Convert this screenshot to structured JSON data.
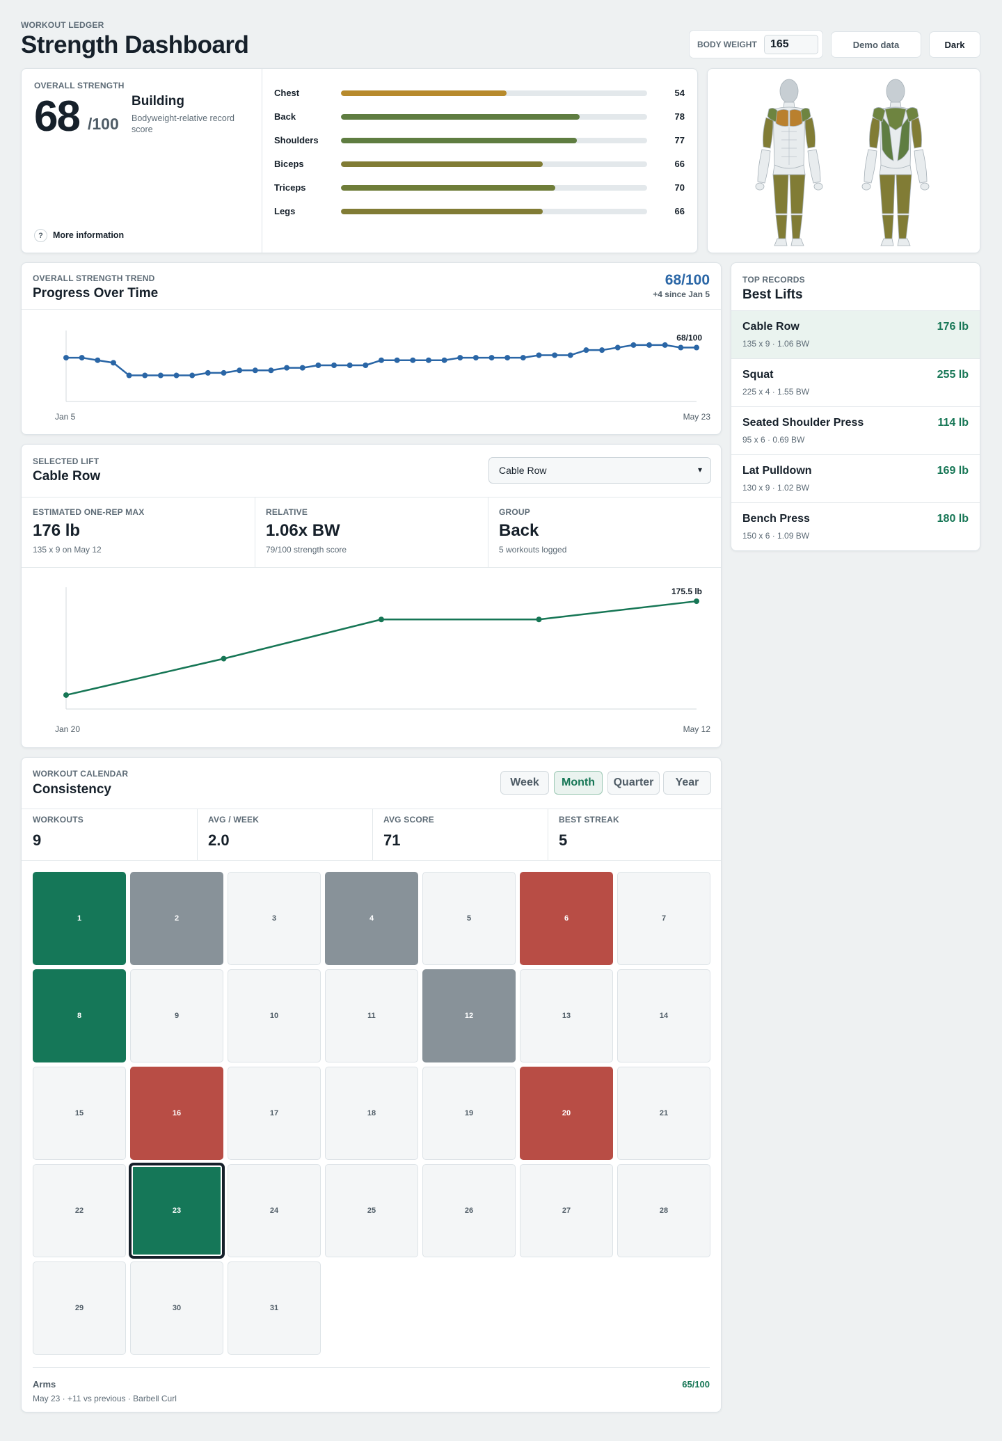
{
  "header": {
    "eyebrow": "WORKOUT LEDGER",
    "title": "Strength Dashboard",
    "body_weight_label": "BODY WEIGHT",
    "body_weight_value": "165",
    "demo_label": "Demo data",
    "dark_label": "Dark"
  },
  "overall": {
    "eyebrow": "OVERALL STRENGTH",
    "score": "68",
    "denominator": "/100",
    "level": "Building",
    "description": "Bodyweight-relative record score",
    "info_label": "More information",
    "info_icon": "?",
    "muscles": [
      {
        "name": "Chest",
        "value": 54,
        "color": "#b78a2c"
      },
      {
        "name": "Back",
        "value": 78,
        "color": "#5f7d41"
      },
      {
        "name": "Shoulders",
        "value": 77,
        "color": "#5f7d41"
      },
      {
        "name": "Biceps",
        "value": 66,
        "color": "#817c35"
      },
      {
        "name": "Triceps",
        "value": 70,
        "color": "#6f7d39"
      },
      {
        "name": "Legs",
        "value": 66,
        "color": "#817c35"
      }
    ]
  },
  "figure": {
    "colors": {
      "chest": "#b9802e",
      "back": "#5f7d41",
      "shoulders": "#6e8440",
      "arms": "#817c35",
      "legs": "#817c35",
      "head": "#c7ced3",
      "neutral": "#e8ecee"
    }
  },
  "trend": {
    "eyebrow": "OVERALL STRENGTH TREND",
    "title": "Progress Over Time",
    "score": "68/100",
    "delta": "+4 since Jan 5"
  },
  "records": {
    "eyebrow": "TOP RECORDS",
    "title": "Best Lifts",
    "items": [
      {
        "name": "Cable Row",
        "detail": "135 x 9 · 1.06 BW",
        "weight": "176 lb"
      },
      {
        "name": "Squat",
        "detail": "225 x 4 · 1.55 BW",
        "weight": "255 lb"
      },
      {
        "name": "Seated Shoulder Press",
        "detail": "95 x 6 · 0.69 BW",
        "weight": "114 lb"
      },
      {
        "name": "Lat Pulldown",
        "detail": "130 x 9 · 1.02 BW",
        "weight": "169 lb"
      },
      {
        "name": "Bench Press",
        "detail": "150 x 6 · 1.09 BW",
        "weight": "180 lb"
      }
    ]
  },
  "lift": {
    "eyebrow": "SELECTED LIFT",
    "title": "Cable Row",
    "select_value": "Cable Row",
    "stats": [
      {
        "label": "ESTIMATED ONE-REP MAX",
        "value": "176 lb",
        "sub": "135 x 9 on May 12"
      },
      {
        "label": "RELATIVE",
        "value": "1.06x BW",
        "sub": "79/100 strength score"
      },
      {
        "label": "GROUP",
        "value": "Back",
        "sub": "5 workouts logged"
      }
    ]
  },
  "calendar": {
    "eyebrow": "WORKOUT CALENDAR",
    "title": "Consistency",
    "tabs": [
      "Week",
      "Month",
      "Quarter",
      "Year"
    ],
    "active_tab": "Month",
    "stats": [
      {
        "label": "WORKOUTS",
        "value": "9"
      },
      {
        "label": "AVG / WEEK",
        "value": "2.0"
      },
      {
        "label": "AVG SCORE",
        "value": "71"
      },
      {
        "label": "BEST STREAK",
        "value": "5"
      }
    ],
    "days": [
      {
        "d": "1",
        "s": "green"
      },
      {
        "d": "2",
        "s": "gray"
      },
      {
        "d": "3",
        "s": ""
      },
      {
        "d": "4",
        "s": "gray"
      },
      {
        "d": "5",
        "s": ""
      },
      {
        "d": "6",
        "s": "red"
      },
      {
        "d": "7",
        "s": ""
      },
      {
        "d": "8",
        "s": "green"
      },
      {
        "d": "9",
        "s": ""
      },
      {
        "d": "10",
        "s": ""
      },
      {
        "d": "11",
        "s": ""
      },
      {
        "d": "12",
        "s": "gray"
      },
      {
        "d": "13",
        "s": ""
      },
      {
        "d": "14",
        "s": ""
      },
      {
        "d": "15",
        "s": ""
      },
      {
        "d": "16",
        "s": "red"
      },
      {
        "d": "17",
        "s": ""
      },
      {
        "d": "18",
        "s": ""
      },
      {
        "d": "19",
        "s": ""
      },
      {
        "d": "20",
        "s": "red"
      },
      {
        "d": "21",
        "s": ""
      },
      {
        "d": "22",
        "s": ""
      },
      {
        "d": "23",
        "s": "green selected"
      },
      {
        "d": "24",
        "s": ""
      },
      {
        "d": "25",
        "s": ""
      },
      {
        "d": "26",
        "s": ""
      },
      {
        "d": "27",
        "s": ""
      },
      {
        "d": "28",
        "s": ""
      },
      {
        "d": "29",
        "s": ""
      },
      {
        "d": "30",
        "s": ""
      },
      {
        "d": "31",
        "s": ""
      }
    ],
    "footer_title": "Arms",
    "footer_sub": "May 23 · +11 vs previous · Barbell Curl",
    "footer_score": "65/100"
  },
  "chart_data": [
    {
      "type": "line",
      "title": "Progress Over Time",
      "color": "#2a66a6",
      "x_start_label": "Jan 5",
      "x_end_label": "May 23",
      "end_label": "68/100",
      "ylim": [
        50,
        72
      ],
      "values": [
        64,
        64,
        63,
        62,
        57,
        57,
        57,
        57,
        57,
        58,
        58,
        59,
        59,
        59,
        60,
        60,
        61,
        61,
        61,
        61,
        63,
        63,
        63,
        63,
        63,
        64,
        64,
        64,
        64,
        64,
        65,
        65,
        65,
        67,
        67,
        68,
        69,
        69,
        69,
        68,
        68
      ]
    },
    {
      "type": "line",
      "title": "Cable Row",
      "color": "#167655",
      "x_start_label": "Jan 20",
      "x_end_label": "May 12",
      "end_label": "175.5 lb",
      "ylim": [
        140,
        178
      ],
      "values": [
        142,
        155,
        169,
        169,
        175.5
      ]
    }
  ]
}
